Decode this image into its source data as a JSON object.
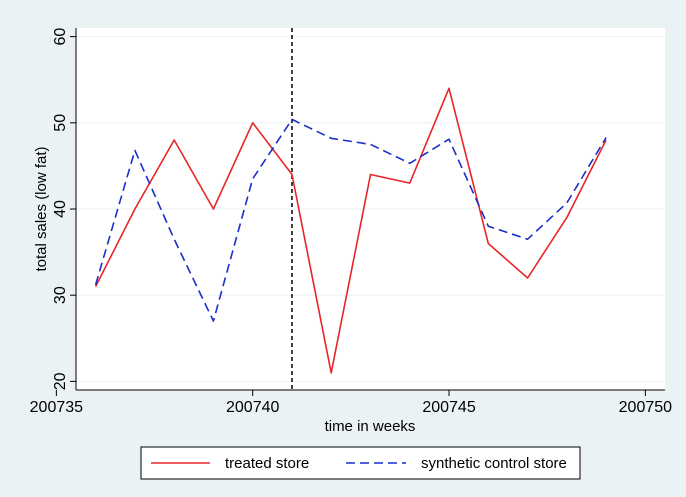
{
  "chart_data": {
    "type": "line",
    "x": [
      200736,
      200737,
      200738,
      200739,
      200740,
      200741,
      200742,
      200743,
      200744,
      200745,
      200746,
      200747,
      200748,
      200749
    ],
    "series": [
      {
        "name": "treated store",
        "color": "#e8262a",
        "dash": "solid",
        "values": [
          31,
          40,
          48,
          40,
          50,
          44,
          21,
          44,
          43,
          54,
          36,
          32,
          39,
          48
        ]
      },
      {
        "name": "synthetic control store",
        "color": "#1a2fcc",
        "dash": "dashed",
        "values": [
          31.2,
          46.8,
          36.5,
          27,
          43.5,
          50.4,
          48.2,
          47.5,
          45.3,
          48.1,
          38,
          36.5,
          40.7,
          48.3
        ]
      }
    ],
    "xlabel": "time in weeks",
    "ylabel": "total sales (low fat)",
    "xlim": [
      200735.5,
      200750.5
    ],
    "ylim": [
      19,
      61
    ],
    "xticks": [
      200735,
      200740,
      200745,
      200750
    ],
    "yticks": [
      20,
      30,
      40,
      50,
      60
    ],
    "vline_x": 200741,
    "grid": "horizontal",
    "legend_position": "bottom"
  }
}
